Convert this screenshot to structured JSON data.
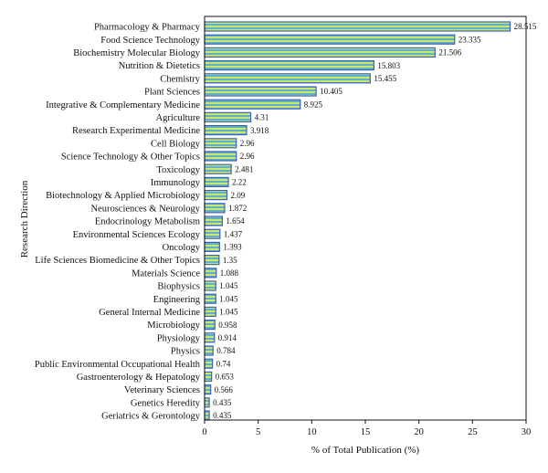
{
  "chart_data": {
    "type": "bar",
    "orientation": "horizontal",
    "title": "",
    "xlabel": "% of Total Publication (%)",
    "ylabel": "Research Direction",
    "xlim": [
      0,
      30
    ],
    "xticks": [
      0,
      5,
      10,
      15,
      20,
      25,
      30
    ],
    "grid": false,
    "bar_colors": [
      "#3a62c0",
      "#c9e86a"
    ],
    "categories": [
      "Pharmacology & Pharmacy",
      "Food Science Technology",
      "Biochemistry Molecular Biology",
      "Nutrition & Dietetics",
      "Chemistry",
      "Plant Sciences",
      "Integrative & Complementary Medicine",
      "Agriculture",
      "Research Experimental Medicine",
      "Cell Biology",
      "Science Technology & Other Topics",
      "Toxicology",
      "Immunology",
      "Biotechnology & Applied Microbiology",
      "Neurosciences & Neurology",
      "Endocrinology Metabolism",
      "Environmental Sciences Ecology",
      "Oncology",
      "Life Sciences Biomedicine & Other Topics",
      "Materials Science",
      "Biophysics",
      "Engineering",
      "General Internal Medicine",
      "Microbiology",
      "Physiology",
      "Physics",
      "Public Environmental Occupational Health",
      "Gastroenterology & Hepatology",
      "Veterinary Sciences",
      "Genetics Heredity",
      "Geriatrics & Gerontology"
    ],
    "values": [
      28.515,
      23.335,
      21.506,
      15.803,
      15.455,
      10.405,
      8.925,
      4.31,
      3.918,
      2.96,
      2.96,
      2.481,
      2.22,
      2.09,
      1.872,
      1.654,
      1.437,
      1.393,
      1.35,
      1.088,
      1.045,
      1.045,
      1.045,
      0.958,
      0.914,
      0.784,
      0.74,
      0.653,
      0.566,
      0.435,
      0.435
    ],
    "value_labels": [
      "28.515",
      "23.335",
      "21.506",
      "15.803",
      "15.455",
      "10.405",
      "8.925",
      "4.31",
      "3.918",
      "2.96",
      "2.96",
      "2.481",
      "2.22",
      "2.09",
      "1.872",
      "1.654",
      "1.437",
      "1.393",
      "1.35",
      "1.088",
      "1.045",
      "1.045",
      "1.045",
      "0.958",
      "0.914",
      "0.784",
      "0.74",
      "0.653",
      "0.566",
      "0.435",
      "0.435"
    ]
  }
}
